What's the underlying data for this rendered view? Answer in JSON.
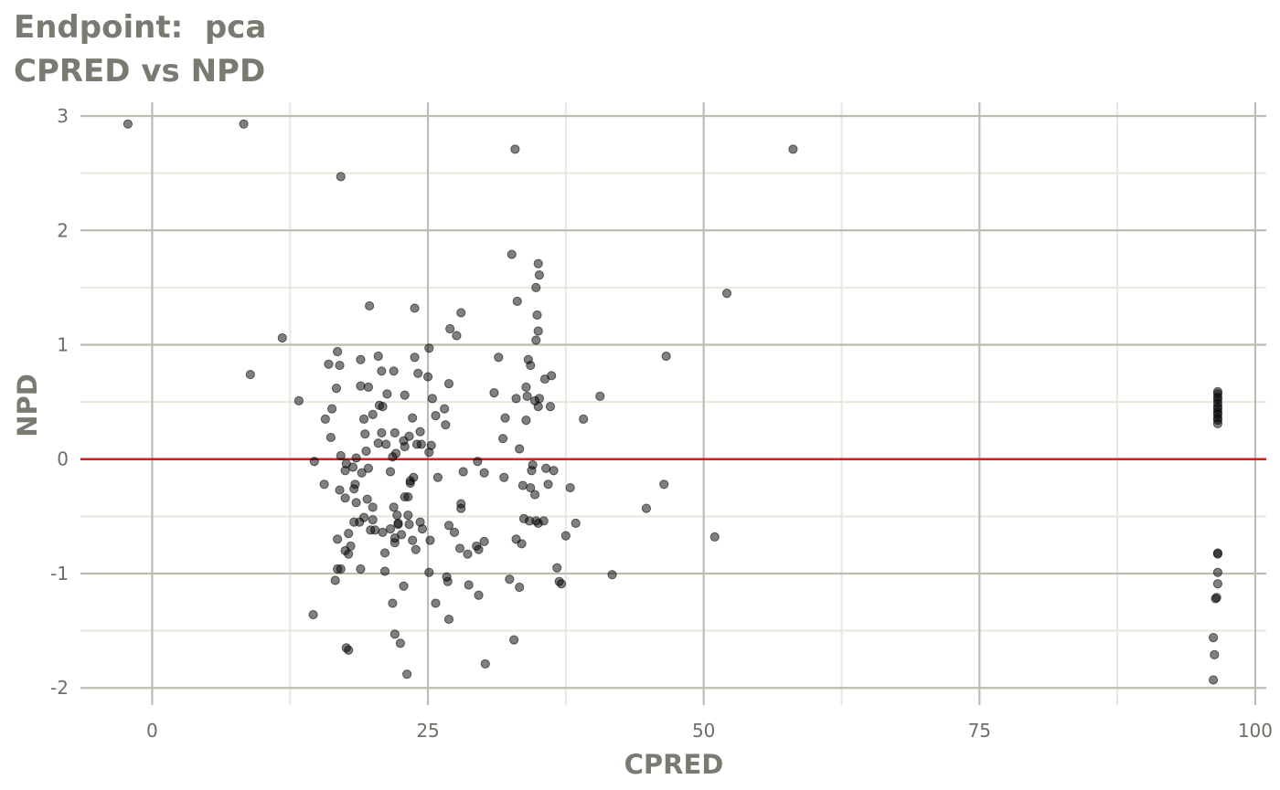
{
  "title_line1": "Endpoint:  pca",
  "title_line2": "CPRED vs NPD",
  "chart_data": {
    "type": "scatter",
    "title": "Endpoint:  pca\nCPRED vs NPD",
    "xlabel": "CPRED",
    "ylabel": "NPD",
    "xlim": [
      -6.5,
      101
    ],
    "ylim": [
      -2.15,
      3.12
    ],
    "x_ticks": [
      0,
      25,
      50,
      75,
      100
    ],
    "x_tick_labels": [
      "0",
      "25",
      "50",
      "75",
      "100"
    ],
    "y_ticks": [
      -2,
      -1,
      0,
      1,
      2,
      3
    ],
    "y_tick_labels": [
      "-2",
      "-1",
      "0",
      "1",
      "2",
      "3"
    ],
    "grid": true,
    "reference_line": {
      "y": 0,
      "color": "#e41a1c"
    },
    "point_color": "#000000",
    "point_opacity": 0.5,
    "points": [
      [
        -2.2,
        2.93
      ],
      [
        8.3,
        2.93
      ],
      [
        32.9,
        2.71
      ],
      [
        58.1,
        2.71
      ],
      [
        17.1,
        2.47
      ],
      [
        32.6,
        1.79
      ],
      [
        35.0,
        1.71
      ],
      [
        35.1,
        1.61
      ],
      [
        34.8,
        1.5
      ],
      [
        52.1,
        1.45
      ],
      [
        19.7,
        1.34
      ],
      [
        33.1,
        1.38
      ],
      [
        23.8,
        1.32
      ],
      [
        28.0,
        1.28
      ],
      [
        34.9,
        1.26
      ],
      [
        27.0,
        1.14
      ],
      [
        35.0,
        1.12
      ],
      [
        11.8,
        1.06
      ],
      [
        27.6,
        1.08
      ],
      [
        34.8,
        1.04
      ],
      [
        16.8,
        0.94
      ],
      [
        25.1,
        0.97
      ],
      [
        20.5,
        0.9
      ],
      [
        46.6,
        0.9
      ],
      [
        18.9,
        0.87
      ],
      [
        23.8,
        0.89
      ],
      [
        31.4,
        0.89
      ],
      [
        16.0,
        0.83
      ],
      [
        17.0,
        0.82
      ],
      [
        34.1,
        0.87
      ],
      [
        34.3,
        0.82
      ],
      [
        20.8,
        0.77
      ],
      [
        21.9,
        0.77
      ],
      [
        24.1,
        0.75
      ],
      [
        25.0,
        0.72
      ],
      [
        35.6,
        0.7
      ],
      [
        36.2,
        0.73
      ],
      [
        8.9,
        0.74
      ],
      [
        26.9,
        0.66
      ],
      [
        18.9,
        0.64
      ],
      [
        19.6,
        0.63
      ],
      [
        16.7,
        0.62
      ],
      [
        33.9,
        0.63
      ],
      [
        31.0,
        0.58
      ],
      [
        21.3,
        0.57
      ],
      [
        22.9,
        0.56
      ],
      [
        25.4,
        0.53
      ],
      [
        34.0,
        0.55
      ],
      [
        40.6,
        0.55
      ],
      [
        13.3,
        0.51
      ],
      [
        35.1,
        0.53
      ],
      [
        34.7,
        0.51
      ],
      [
        33.0,
        0.53
      ],
      [
        20.6,
        0.47
      ],
      [
        20.9,
        0.46
      ],
      [
        16.3,
        0.44
      ],
      [
        26.5,
        0.44
      ],
      [
        35.0,
        0.46
      ],
      [
        36.1,
        0.46
      ],
      [
        20.0,
        0.39
      ],
      [
        25.7,
        0.38
      ],
      [
        32.0,
        0.36
      ],
      [
        15.7,
        0.35
      ],
      [
        19.2,
        0.35
      ],
      [
        23.6,
        0.36
      ],
      [
        39.1,
        0.35
      ],
      [
        33.9,
        0.34
      ],
      [
        26.6,
        0.3
      ],
      [
        24.3,
        0.24
      ],
      [
        20.8,
        0.23
      ],
      [
        22.0,
        0.23
      ],
      [
        16.2,
        0.19
      ],
      [
        23.3,
        0.2
      ],
      [
        31.8,
        0.18
      ],
      [
        19.3,
        0.22
      ],
      [
        22.8,
        0.16
      ],
      [
        20.5,
        0.14
      ],
      [
        21.2,
        0.13
      ],
      [
        24.0,
        0.13
      ],
      [
        24.4,
        0.13
      ],
      [
        22.9,
        0.11
      ],
      [
        25.3,
        0.12
      ],
      [
        33.3,
        0.09
      ],
      [
        19.4,
        0.07
      ],
      [
        22.1,
        0.05
      ],
      [
        25.1,
        0.06
      ],
      [
        17.1,
        0.03
      ],
      [
        21.8,
        0.02
      ],
      [
        18.5,
        0.01
      ],
      [
        14.7,
        -0.02
      ],
      [
        17.6,
        -0.04
      ],
      [
        29.5,
        -0.02
      ],
      [
        18.2,
        -0.07
      ],
      [
        34.5,
        -0.05
      ],
      [
        17.5,
        -0.1
      ],
      [
        19.6,
        -0.08
      ],
      [
        35.7,
        -0.08
      ],
      [
        36.4,
        -0.1
      ],
      [
        19.0,
        -0.12
      ],
      [
        21.6,
        -0.11
      ],
      [
        28.2,
        -0.11
      ],
      [
        30.1,
        -0.12
      ],
      [
        34.4,
        -0.1
      ],
      [
        23.7,
        -0.16
      ],
      [
        23.4,
        -0.19
      ],
      [
        23.4,
        -0.21
      ],
      [
        25.9,
        -0.16
      ],
      [
        31.9,
        -0.16
      ],
      [
        35.9,
        -0.22
      ],
      [
        37.9,
        -0.25
      ],
      [
        46.4,
        -0.22
      ],
      [
        15.6,
        -0.22
      ],
      [
        18.4,
        -0.22
      ],
      [
        18.3,
        -0.26
      ],
      [
        17.0,
        -0.27
      ],
      [
        34.3,
        -0.25
      ],
      [
        33.6,
        -0.23
      ],
      [
        34.7,
        -0.31
      ],
      [
        23.2,
        -0.33
      ],
      [
        17.5,
        -0.34
      ],
      [
        19.5,
        -0.35
      ],
      [
        22.9,
        -0.33
      ],
      [
        18.5,
        -0.38
      ],
      [
        28.0,
        -0.39
      ],
      [
        28.0,
        -0.43
      ],
      [
        20.0,
        -0.42
      ],
      [
        21.9,
        -0.42
      ],
      [
        44.8,
        -0.43
      ],
      [
        23.2,
        -0.49
      ],
      [
        22.2,
        -0.49
      ],
      [
        19.2,
        -0.51
      ],
      [
        20.0,
        -0.53
      ],
      [
        18.3,
        -0.55
      ],
      [
        24.3,
        -0.55
      ],
      [
        22.3,
        -0.56
      ],
      [
        22.3,
        -0.57
      ],
      [
        23.3,
        -0.57
      ],
      [
        18.8,
        -0.55
      ],
      [
        33.7,
        -0.52
      ],
      [
        34.2,
        -0.54
      ],
      [
        34.8,
        -0.54
      ],
      [
        35.0,
        -0.56
      ],
      [
        35.5,
        -0.54
      ],
      [
        38.4,
        -0.56
      ],
      [
        26.9,
        -0.58
      ],
      [
        24.5,
        -0.61
      ],
      [
        19.8,
        -0.62
      ],
      [
        20.2,
        -0.62
      ],
      [
        20.9,
        -0.64
      ],
      [
        21.6,
        -0.61
      ],
      [
        22.6,
        -0.66
      ],
      [
        27.4,
        -0.64
      ],
      [
        17.8,
        -0.65
      ],
      [
        22.0,
        -0.69
      ],
      [
        37.5,
        -0.67
      ],
      [
        16.8,
        -0.7
      ],
      [
        23.6,
        -0.71
      ],
      [
        25.2,
        -0.71
      ],
      [
        33.0,
        -0.7
      ],
      [
        51.0,
        -0.68
      ],
      [
        22.0,
        -0.73
      ],
      [
        30.1,
        -0.72
      ],
      [
        33.5,
        -0.74
      ],
      [
        18.0,
        -0.76
      ],
      [
        29.4,
        -0.76
      ],
      [
        23.9,
        -0.79
      ],
      [
        27.9,
        -0.78
      ],
      [
        29.6,
        -0.79
      ],
      [
        17.5,
        -0.8
      ],
      [
        17.8,
        -0.83
      ],
      [
        21.1,
        -0.82
      ],
      [
        28.6,
        -0.83
      ],
      [
        16.8,
        -0.96
      ],
      [
        17.1,
        -0.96
      ],
      [
        18.9,
        -0.96
      ],
      [
        21.1,
        -0.98
      ],
      [
        25.1,
        -0.99
      ],
      [
        36.7,
        -0.95
      ],
      [
        41.7,
        -1.01
      ],
      [
        26.7,
        -1.03
      ],
      [
        16.6,
        -1.06
      ],
      [
        26.8,
        -1.07
      ],
      [
        32.4,
        -1.05
      ],
      [
        36.9,
        -1.07
      ],
      [
        37.1,
        -1.09
      ],
      [
        22.8,
        -1.11
      ],
      [
        28.7,
        -1.1
      ],
      [
        33.3,
        -1.12
      ],
      [
        29.6,
        -1.19
      ],
      [
        21.8,
        -1.26
      ],
      [
        25.7,
        -1.26
      ],
      [
        14.6,
        -1.36
      ],
      [
        26.9,
        -1.4
      ],
      [
        22.0,
        -1.53
      ],
      [
        32.8,
        -1.58
      ],
      [
        22.5,
        -1.61
      ],
      [
        17.6,
        -1.65
      ],
      [
        17.8,
        -1.67
      ],
      [
        30.2,
        -1.79
      ],
      [
        23.1,
        -1.88
      ],
      [
        96.6,
        0.59
      ],
      [
        96.6,
        0.57
      ],
      [
        96.6,
        0.54
      ],
      [
        96.6,
        0.52
      ],
      [
        96.6,
        0.49
      ],
      [
        96.6,
        0.46
      ],
      [
        96.6,
        0.44
      ],
      [
        96.6,
        0.41
      ],
      [
        96.6,
        0.39
      ],
      [
        96.6,
        0.36
      ],
      [
        96.6,
        0.34
      ],
      [
        96.6,
        0.31
      ],
      [
        96.6,
        -0.82
      ],
      [
        96.6,
        -0.83
      ],
      [
        96.6,
        -0.99
      ],
      [
        96.6,
        -1.09
      ],
      [
        96.5,
        -1.21
      ],
      [
        96.4,
        -1.22
      ],
      [
        96.2,
        -1.56
      ],
      [
        96.3,
        -1.71
      ],
      [
        96.2,
        -1.93
      ]
    ]
  }
}
